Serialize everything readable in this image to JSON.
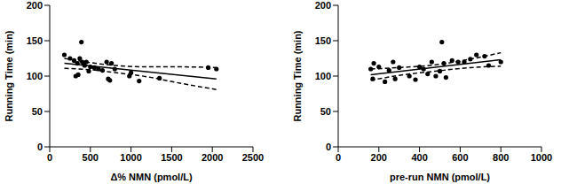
{
  "chart_data": [
    {
      "type": "scatter",
      "x_label": "Δ% NMN (pmol/L)",
      "y_label": "Running Time (min)",
      "xlim": [
        0,
        2500
      ],
      "xticks": [
        0,
        500,
        1000,
        1500,
        2000,
        2500
      ],
      "ylim": [
        0,
        200
      ],
      "yticks": [
        0,
        50,
        100,
        150,
        200
      ],
      "color": "#000000",
      "marker": "circle",
      "x": [
        180,
        250,
        300,
        320,
        340,
        350,
        370,
        390,
        400,
        420,
        430,
        450,
        480,
        500,
        550,
        600,
        650,
        700,
        720,
        740,
        760,
        800,
        980,
        1000,
        1100,
        1350,
        1950,
        2050
      ],
      "values": [
        130,
        125,
        122,
        100,
        118,
        102,
        125,
        148,
        120,
        118,
        115,
        120,
        107,
        113,
        112,
        110,
        108,
        120,
        96,
        94,
        118,
        110,
        100,
        105,
        93,
        97,
        112,
        110
      ],
      "fit": {
        "x": [
          180,
          2050
        ],
        "values": [
          118,
          96
        ],
        "line_style": "solid"
      },
      "ci_upper": {
        "x": [
          180,
          500,
          800,
          1200,
          1600,
          2050
        ],
        "values": [
          125,
          119,
          115,
          113,
          113,
          112
        ],
        "line_style": "dashed"
      },
      "ci_lower": {
        "x": [
          180,
          500,
          800,
          1200,
          1600,
          2050
        ],
        "values": [
          111,
          109,
          105,
          99,
          90,
          81
        ],
        "line_style": "dashed"
      }
    },
    {
      "type": "scatter",
      "x_label": "pre-run NMN (pmol/L)",
      "y_label": "Running Time (min)",
      "xlim": [
        0,
        1000
      ],
      "xticks": [
        0,
        200,
        400,
        600,
        800,
        1000
      ],
      "ylim": [
        0,
        200
      ],
      "yticks": [
        0,
        50,
        100,
        150,
        200
      ],
      "color": "#000000",
      "marker": "circle",
      "x": [
        160,
        170,
        175,
        200,
        230,
        250,
        270,
        280,
        300,
        350,
        380,
        400,
        420,
        440,
        460,
        480,
        500,
        510,
        520,
        530,
        560,
        590,
        620,
        650,
        680,
        720,
        740,
        800
      ],
      "values": [
        110,
        96,
        118,
        113,
        92,
        108,
        120,
        96,
        112,
        100,
        95,
        113,
        110,
        103,
        120,
        100,
        107,
        148,
        118,
        98,
        122,
        120,
        120,
        124,
        130,
        128,
        115,
        120
      ],
      "fit": {
        "x": [
          160,
          800
        ],
        "values": [
          102,
          123
        ],
        "line_style": "solid"
      },
      "ci_upper": {
        "x": [
          160,
          300,
          480,
          650,
          800
        ],
        "values": [
          110,
          112,
          116,
          124,
          133
        ],
        "line_style": "dashed"
      },
      "ci_lower": {
        "x": [
          160,
          300,
          480,
          650,
          800
        ],
        "values": [
          94,
          101,
          107,
          112,
          114
        ],
        "line_style": "dashed"
      }
    }
  ]
}
